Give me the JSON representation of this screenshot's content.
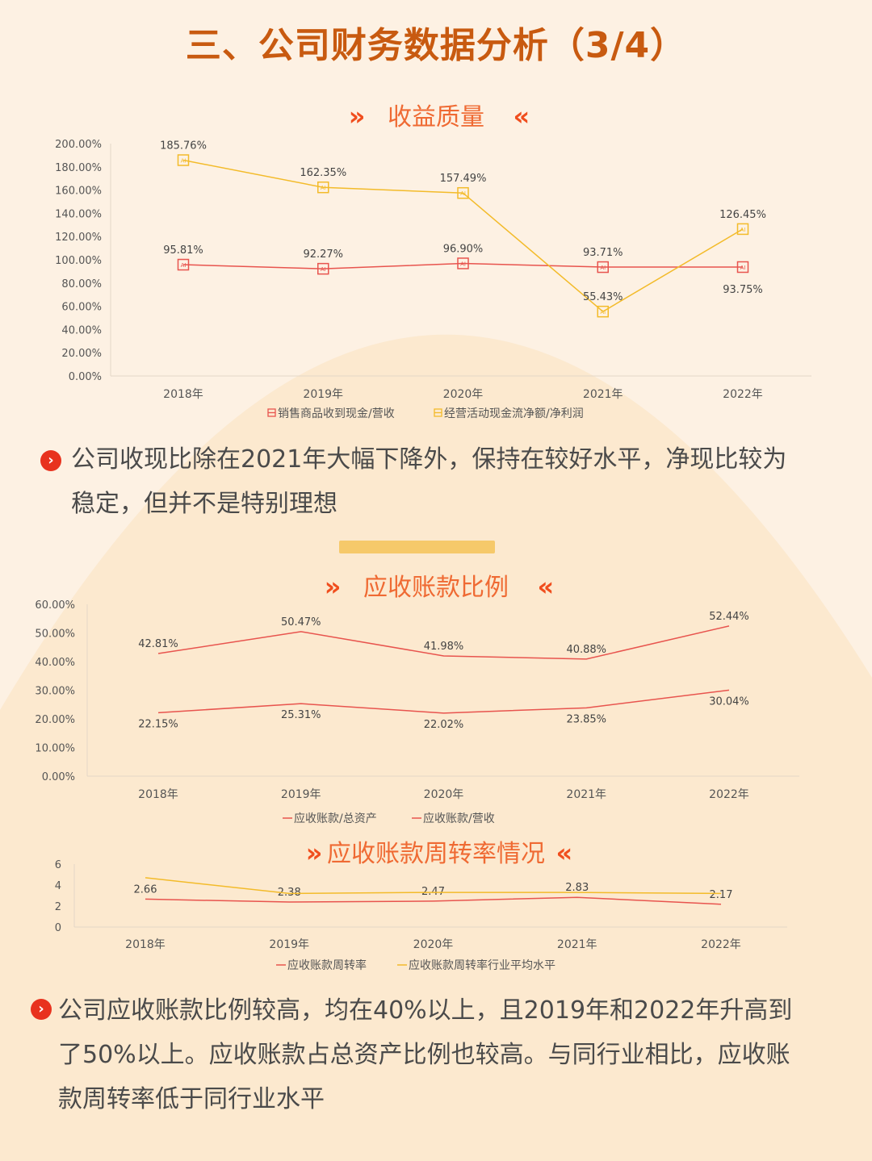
{
  "page_title": "三、公司财务数据分析（3/4）",
  "colors": {
    "red": "#e8544e",
    "yellow": "#f3bb2a",
    "title": "#c85a10",
    "accent": "#ef6a33",
    "divider": "#f6c96a"
  },
  "section1": {
    "title": "收益质量",
    "arrow_left": "»",
    "arrow_right": "«",
    "paragraph": [
      "公司收现比除在2021年大幅下降外，保持在较好水平，净现比较为",
      "稳定，但并不是特别理想"
    ]
  },
  "section2": {
    "title": "应收账款比例",
    "arrow_left": "»",
    "arrow_right": "«"
  },
  "section3": {
    "title": "应收账款周转率情况",
    "arrow_left": "»",
    "arrow_right": "«",
    "paragraph": [
      "公司应收账款比例较高，均在40%以上，且2019年和2022年升高到",
      "了50%以上。应收账款占总资产比例也较高。与同行业相比，应收账",
      "款周转率低于同行业水平"
    ]
  },
  "bullet_glyph": "›",
  "chart_data": [
    {
      "type": "line",
      "title": "收益质量",
      "categories": [
        "2018年",
        "2019年",
        "2020年",
        "2021年",
        "2022年"
      ],
      "ylim": [
        0,
        200
      ],
      "yticks": [
        "0.00%",
        "20.00%",
        "40.00%",
        "60.00%",
        "80.00%",
        "100.00%",
        "120.00%",
        "140.00%",
        "160.00%",
        "180.00%",
        "200.00%"
      ],
      "legend_position": "bottom",
      "series": [
        {
          "name": "销售商品收到现金/营收",
          "values": [
            95.81,
            92.27,
            96.9,
            93.71,
            93.75
          ],
          "labels": [
            "95.81%",
            "92.27%",
            "96.90%",
            "93.71%",
            "93.75%"
          ],
          "color": "#e8544e"
        },
        {
          "name": "经营活动现金流净额/净利润",
          "values": [
            185.76,
            162.35,
            157.49,
            55.43,
            126.45
          ],
          "labels": [
            "185.76%",
            "162.35%",
            "157.49%",
            "55.43%",
            "126.45%"
          ],
          "color": "#f3bb2a"
        }
      ]
    },
    {
      "type": "line",
      "title": "应收账款比例",
      "categories": [
        "2018年",
        "2019年",
        "2020年",
        "2021年",
        "2022年"
      ],
      "ylim": [
        0,
        60
      ],
      "yticks": [
        "0.00%",
        "10.00%",
        "20.00%",
        "30.00%",
        "40.00%",
        "50.00%",
        "60.00%"
      ],
      "legend_position": "bottom",
      "series": [
        {
          "name": "应收账款/总资产",
          "values": [
            22.15,
            25.31,
            22.02,
            23.85,
            30.04
          ],
          "labels": [
            "22.15%",
            "25.31%",
            "22.02%",
            "23.85%",
            "30.04%"
          ],
          "color": "#e8544e"
        },
        {
          "name": "应收账款/营收",
          "values": [
            42.81,
            50.47,
            41.98,
            40.88,
            52.44
          ],
          "labels": [
            "42.81%",
            "50.47%",
            "41.98%",
            "40.88%",
            "52.44%"
          ],
          "color": "#e8544e"
        }
      ]
    },
    {
      "type": "line",
      "title": "应收账款周转率情况",
      "categories": [
        "2018年",
        "2019年",
        "2020年",
        "2021年",
        "2022年"
      ],
      "ylim": [
        0,
        6
      ],
      "yticks": [
        "0",
        "2",
        "4",
        "6"
      ],
      "legend_position": "bottom",
      "series": [
        {
          "name": "应收账款周转率",
          "values": [
            2.66,
            2.38,
            2.47,
            2.83,
            2.17
          ],
          "labels": [
            "2.66",
            "2.38",
            "2.47",
            "2.83",
            "2.17"
          ],
          "color": "#e8544e"
        },
        {
          "name": "应收账款周转率行业平均水平",
          "values": [
            4.7,
            3.2,
            3.3,
            3.3,
            3.2
          ],
          "labels": [
            "",
            "",
            "",
            "",
            ""
          ],
          "color": "#f3bb2a"
        }
      ]
    }
  ]
}
